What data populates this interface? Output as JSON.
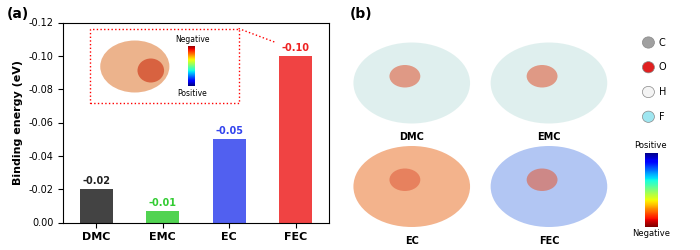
{
  "chart_data": {
    "type": "bar",
    "panel_label": "(a)",
    "ylabel": "Binding energy (eV)",
    "categories": [
      "DMC",
      "EMC",
      "EC",
      "FEC"
    ],
    "values": [
      -0.02,
      -0.007,
      -0.05,
      -0.1
    ],
    "value_labels": [
      "-0.02",
      "-0.01",
      "-0.05",
      "-0.10"
    ],
    "colors": [
      "#222222",
      "#33cc33",
      "#3344ee",
      "#ee2222"
    ],
    "ylim": [
      0,
      -0.12
    ],
    "yticks": [
      {
        "value": 0,
        "label": "0.00"
      },
      {
        "value": -0.02,
        "label": "-0.02"
      },
      {
        "value": -0.04,
        "label": "-0.04"
      },
      {
        "value": -0.06,
        "label": "-0.06"
      },
      {
        "value": -0.08,
        "label": "-0.08"
      },
      {
        "value": -0.1,
        "label": "-0.10"
      },
      {
        "value": -0.12,
        "label": "-0.12"
      }
    ],
    "data_labels": true,
    "grid": false
  },
  "inset": {
    "colorbar_labels": [
      "Negative",
      "Positive"
    ]
  },
  "panel_b": {
    "panel_label": "(b)",
    "molecules": [
      "DMC",
      "EMC",
      "EC",
      "FEC"
    ],
    "atom_legend": [
      {
        "symbol": "C",
        "color": "#a0a0a0"
      },
      {
        "symbol": "O",
        "color": "#e02020"
      },
      {
        "symbol": "H",
        "color": "#f4f4f4"
      },
      {
        "symbol": "F",
        "color": "#9fe6f0"
      }
    ],
    "colorbar_labels": [
      "Positive",
      "Negative"
    ]
  }
}
